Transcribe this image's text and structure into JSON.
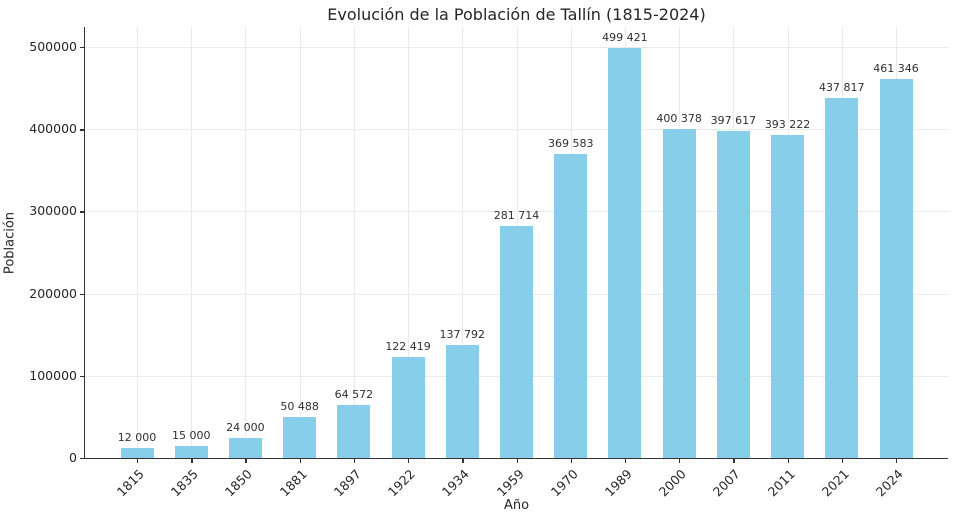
{
  "chart_data": {
    "type": "bar",
    "title": "Evolución de la Población de Tallín (1815-2024)",
    "xlabel": "Año",
    "ylabel": "Población",
    "categories": [
      "1815",
      "1835",
      "1850",
      "1881",
      "1897",
      "1922",
      "1934",
      "1959",
      "1970",
      "1989",
      "2000",
      "2007",
      "2011",
      "2021",
      "2024"
    ],
    "values": [
      12000,
      15000,
      24000,
      50488,
      64572,
      122419,
      137792,
      281714,
      369583,
      499421,
      400378,
      397617,
      393222,
      437817,
      461346
    ],
    "value_labels": [
      "12 000",
      "15 000",
      "24 000",
      "50 488",
      "64 572",
      "122 419",
      "137 792",
      "281 714",
      "369 583",
      "499 421",
      "400 378",
      "397 617",
      "393 222",
      "437 817",
      "461 346"
    ],
    "yticks": [
      0,
      100000,
      200000,
      300000,
      400000,
      500000
    ],
    "ytick_labels": [
      "0",
      "100000",
      "200000",
      "300000",
      "400000",
      "500000"
    ],
    "ylim": [
      0,
      524392
    ],
    "bar_color": "#87CEEB",
    "grid": true,
    "grid_color": "#eaeaea",
    "spine_color": "#333333",
    "legend": null
  }
}
